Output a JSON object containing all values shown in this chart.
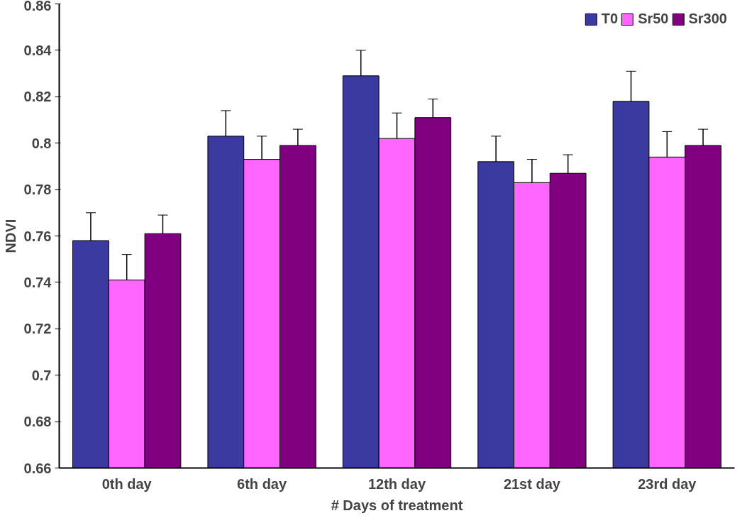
{
  "chart_data": {
    "type": "bar",
    "xlabel": "# Days of treatment",
    "ylabel": "NDVI",
    "categories": [
      "0th day",
      "6th day",
      "12th day",
      "21st day",
      "23rd day"
    ],
    "series": [
      {
        "name": "T0",
        "color": "#3a3aa0",
        "values": [
          0.758,
          0.803,
          0.829,
          0.792,
          0.818
        ],
        "errors": [
          0.012,
          0.011,
          0.011,
          0.011,
          0.013
        ]
      },
      {
        "name": "Sr50",
        "color": "#ff66ff",
        "values": [
          0.741,
          0.793,
          0.802,
          0.783,
          0.794
        ],
        "errors": [
          0.011,
          0.01,
          0.011,
          0.01,
          0.011
        ]
      },
      {
        "name": "Sr300",
        "color": "#800080",
        "values": [
          0.761,
          0.799,
          0.811,
          0.787,
          0.799
        ],
        "errors": [
          0.008,
          0.007,
          0.008,
          0.008,
          0.007
        ]
      }
    ],
    "ylim": [
      0.66,
      0.86
    ],
    "yticks": [
      0.66,
      0.68,
      0.7,
      0.72,
      0.74,
      0.76,
      0.78,
      0.8,
      0.82,
      0.84,
      0.86
    ],
    "grid": false,
    "legend": "top right"
  }
}
